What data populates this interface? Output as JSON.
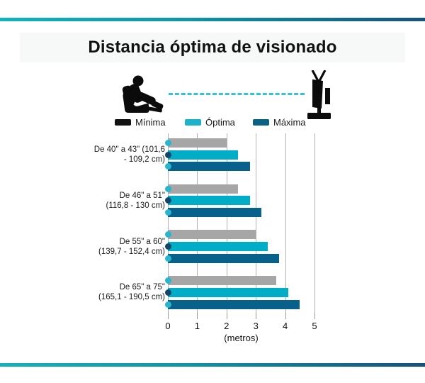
{
  "page": {
    "title": "Distancia óptima de visionado"
  },
  "scene": {
    "person_icon": "viewer-in-recliner",
    "tv_icon": "tv-side-view",
    "sightline_color": "#3bbfd4"
  },
  "legend": [
    {
      "label": "Mínima",
      "swatch_color": "#121212"
    },
    {
      "label": "Óptima",
      "swatch_color": "#1cb2ca"
    },
    {
      "label": "Máxima",
      "swatch_color": "#0b6183"
    }
  ],
  "chart_data": {
    "type": "bar",
    "orientation": "horizontal",
    "title": "Distancia óptima de visionado",
    "categories": [
      {
        "line1": "De 40\" a 43\" (101,6",
        "line2": "- 109,2 cm)"
      },
      {
        "line1": "De 46\" a 51\"",
        "line2": "(116,8 - 130 cm)"
      },
      {
        "line1": "De 55\" a 60\"",
        "line2": "(139,7 - 152,4 cm)"
      },
      {
        "line1": "De 65\" a 75\"",
        "line2": "(165,1 - 190,5 cm)"
      }
    ],
    "series": [
      {
        "name": "Mínima",
        "bar_color": "#a6a6a6",
        "dot_color": "#29b5cc",
        "values": [
          2.0,
          2.4,
          3.0,
          3.7
        ]
      },
      {
        "name": "Óptima",
        "bar_color": "#00adc6",
        "dot_color": "#17436a",
        "values": [
          2.4,
          2.8,
          3.4,
          4.1
        ]
      },
      {
        "name": "Máxima",
        "bar_color": "#07618a",
        "dot_color": "#29b5cc",
        "values": [
          2.8,
          3.2,
          3.8,
          4.5
        ]
      }
    ],
    "xlim": [
      0,
      5
    ],
    "xticks": [
      0,
      1,
      2,
      3,
      4,
      5
    ],
    "xlabel": "(metros)",
    "grid": true,
    "legend_position": "top"
  },
  "colors": {
    "accent_gradient_start": "#12b2be",
    "accent_gradient_end": "#14527d",
    "title_band_bg": "#f7f8f8",
    "grid_color": "#b1b1b1"
  }
}
